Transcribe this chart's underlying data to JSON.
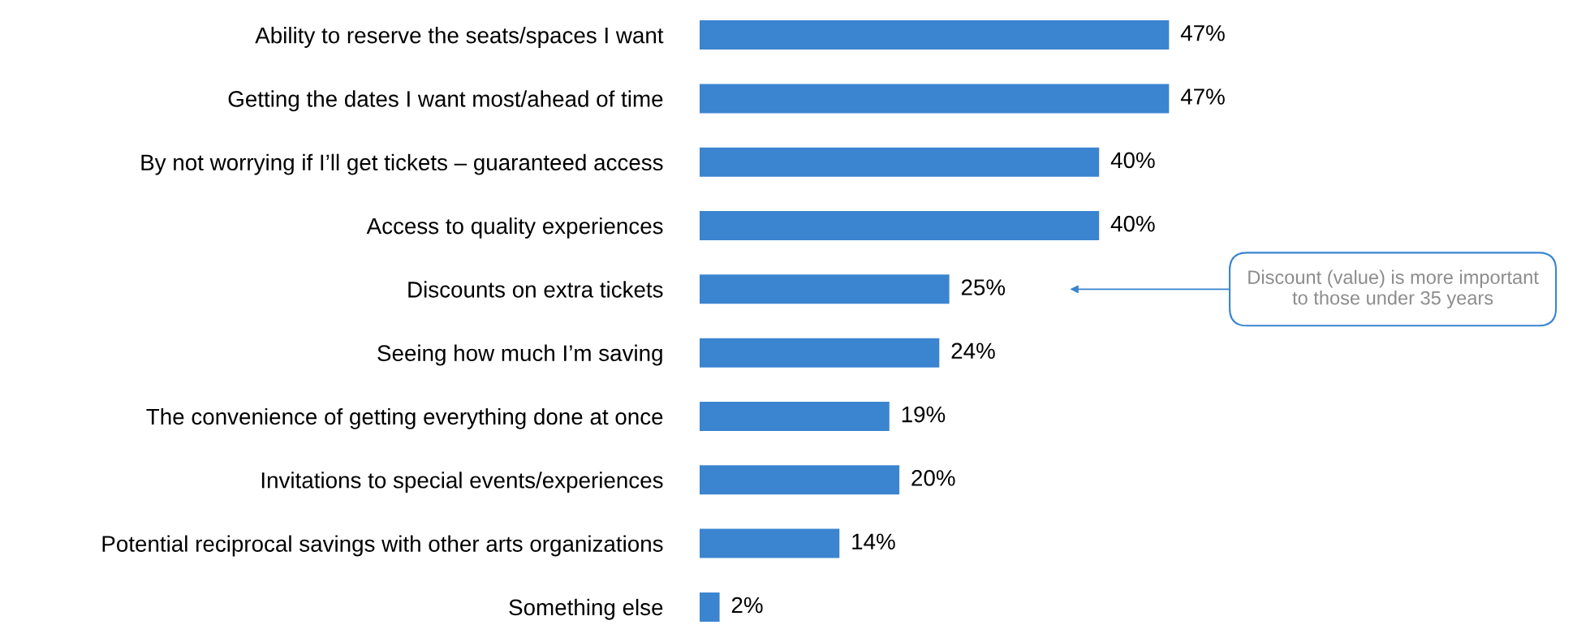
{
  "chart_data": {
    "type": "bar",
    "orientation": "horizontal",
    "color": "#3a84d0",
    "value_labels": [
      "47%",
      "47%",
      "40%",
      "40%",
      "25%",
      "24%",
      "19%",
      "20%",
      "14%",
      "2%"
    ],
    "categories": [
      "Ability to reserve the seats/spaces I want",
      "Getting the dates I want most/ahead of time",
      "By not worrying if I’ll get tickets – guaranteed access",
      "Access to quality experiences",
      "Discounts on extra tickets",
      "Seeing how much I’m saving",
      "The convenience of getting everything done at once",
      "Invitations to special events/experiences",
      "Potential reciprocal savings with other arts organizations",
      "Something else"
    ],
    "values": [
      47,
      47,
      40,
      40,
      25,
      24,
      19,
      20,
      14,
      2
    ],
    "annotations": [
      "Discount (value) is more important\nto those under 35 years"
    ]
  }
}
